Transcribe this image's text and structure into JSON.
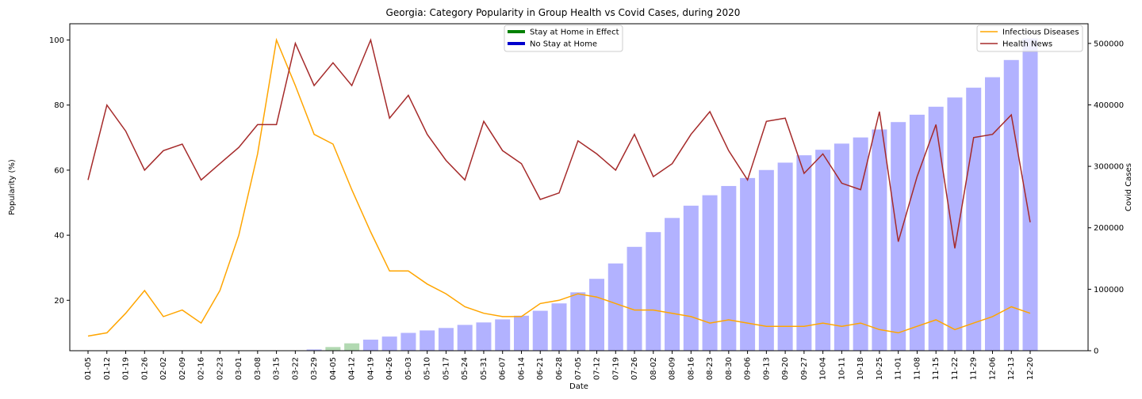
{
  "chart_data": {
    "type": "bar+line",
    "title": "Georgia: Category Popularity in Group Health vs Covid Cases, during 2020",
    "xlabel": "Date",
    "ylabel_left": "Popularity (%)",
    "ylabel_right": "Covid Cases",
    "categories": [
      "01-05",
      "01-12",
      "01-19",
      "01-26",
      "02-02",
      "02-09",
      "02-16",
      "02-23",
      "03-01",
      "03-08",
      "03-15",
      "03-22",
      "03-29",
      "04-05",
      "04-12",
      "04-19",
      "04-26",
      "05-03",
      "05-10",
      "05-17",
      "05-24",
      "05-31",
      "06-07",
      "06-14",
      "06-21",
      "06-28",
      "07-05",
      "07-12",
      "07-19",
      "07-26",
      "08-02",
      "08-09",
      "08-16",
      "08-23",
      "08-30",
      "09-06",
      "09-13",
      "09-20",
      "09-27",
      "10-04",
      "10-11",
      "10-18",
      "10-25",
      "11-01",
      "11-08",
      "11-15",
      "11-22",
      "11-29",
      "12-06",
      "12-13",
      "12-20"
    ],
    "ylim_left": [
      4.5,
      105
    ],
    "yticks_left": [
      20,
      40,
      60,
      80,
      100
    ],
    "ylim_right": [
      0,
      532000
    ],
    "yticks_right": [
      0,
      100000,
      200000,
      300000,
      400000,
      500000
    ],
    "series": [
      {
        "name": "Infectious Diseases",
        "color": "#ffa500",
        "values": [
          9,
          10,
          16,
          23,
          15,
          17,
          13,
          23,
          40,
          65,
          100,
          86,
          71,
          68,
          54,
          41,
          29,
          29,
          25,
          22,
          18,
          16,
          15,
          15,
          19,
          20,
          22,
          21,
          19,
          17,
          17,
          16,
          15,
          13,
          14,
          13,
          12,
          12,
          12,
          13,
          12,
          13,
          11,
          10,
          12,
          14,
          11,
          13,
          15,
          18,
          16
        ]
      },
      {
        "name": "Health News",
        "color": "#a52a2a",
        "values": [
          57,
          80,
          72,
          60,
          66,
          68,
          57,
          62,
          67,
          74,
          74,
          99,
          86,
          93,
          86,
          100,
          76,
          83,
          71,
          63,
          57,
          75,
          66,
          62,
          51,
          53,
          69,
          65,
          60,
          71,
          58,
          62,
          71,
          78,
          66,
          57,
          75,
          76,
          59,
          65,
          56,
          54,
          78,
          38,
          58,
          74,
          36,
          70,
          71,
          77,
          44
        ]
      }
    ],
    "covid_cases": {
      "values": [
        0,
        0,
        0,
        0,
        0,
        0,
        0,
        0,
        0,
        0,
        0,
        0,
        2000,
        6000,
        12000,
        18000,
        23000,
        29000,
        33000,
        37000,
        42000,
        46000,
        51000,
        57000,
        65000,
        77000,
        95000,
        117000,
        142000,
        169000,
        193000,
        216000,
        236000,
        253000,
        268000,
        281000,
        294000,
        306000,
        318000,
        327000,
        337000,
        347000,
        360000,
        372000,
        384000,
        397000,
        412000,
        428000,
        445000,
        473000,
        508000
      ],
      "colors": {
        "stay_at_home": "#008000",
        "no_stay_at_home": "#0000ff"
      },
      "stay_at_home_from": "04-05",
      "stay_at_home_to": "04-12"
    },
    "legend_left": [
      {
        "label": "Stay at Home in Effect",
        "color": "#008000"
      },
      {
        "label": "No Stay at Home",
        "color": "#0000cd"
      }
    ],
    "legend_right_placement": "top-right",
    "legend_left_placement": "top-center",
    "grid": false
  }
}
